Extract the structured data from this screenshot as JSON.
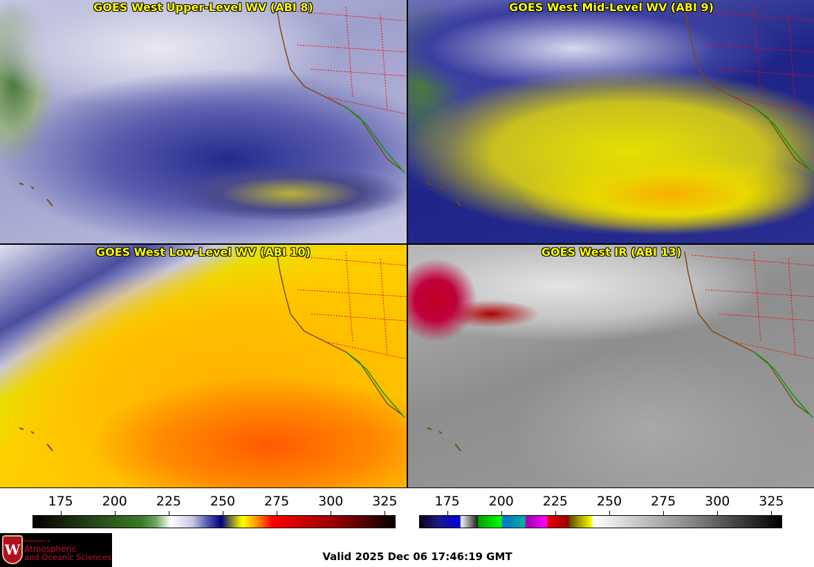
{
  "panels": [
    {
      "title": "GOES West Upper-Level WV (ABI 8)"
    },
    {
      "title": "GOES West Mid-Level WV (ABI 9)"
    },
    {
      "title": "GOES West Low-Level WV (ABI 10)"
    },
    {
      "title": "GOES West IR (ABI 13)"
    }
  ],
  "colorbars": [
    {
      "name": "water-vapor-colorbar",
      "range": [
        162,
        330
      ],
      "ticks": [
        "175",
        "200",
        "225",
        "250",
        "275",
        "300",
        "325"
      ]
    },
    {
      "name": "infrared-colorbar",
      "range": [
        162,
        330
      ],
      "ticks": [
        "175",
        "200",
        "225",
        "250",
        "275",
        "300",
        "325"
      ]
    }
  ],
  "logo": {
    "dept": "Department of",
    "line1": "Atmospheric",
    "line2": "and Oceanic Sciences",
    "crest_letter": "W"
  },
  "valid_time": "Valid 2025 Dec 06 17:46:19 GMT",
  "colors": {
    "title": "#ffff00",
    "state_borders": "#ff0000",
    "coast_us": "#7a4a10",
    "coast_mexico": "#00a000"
  }
}
